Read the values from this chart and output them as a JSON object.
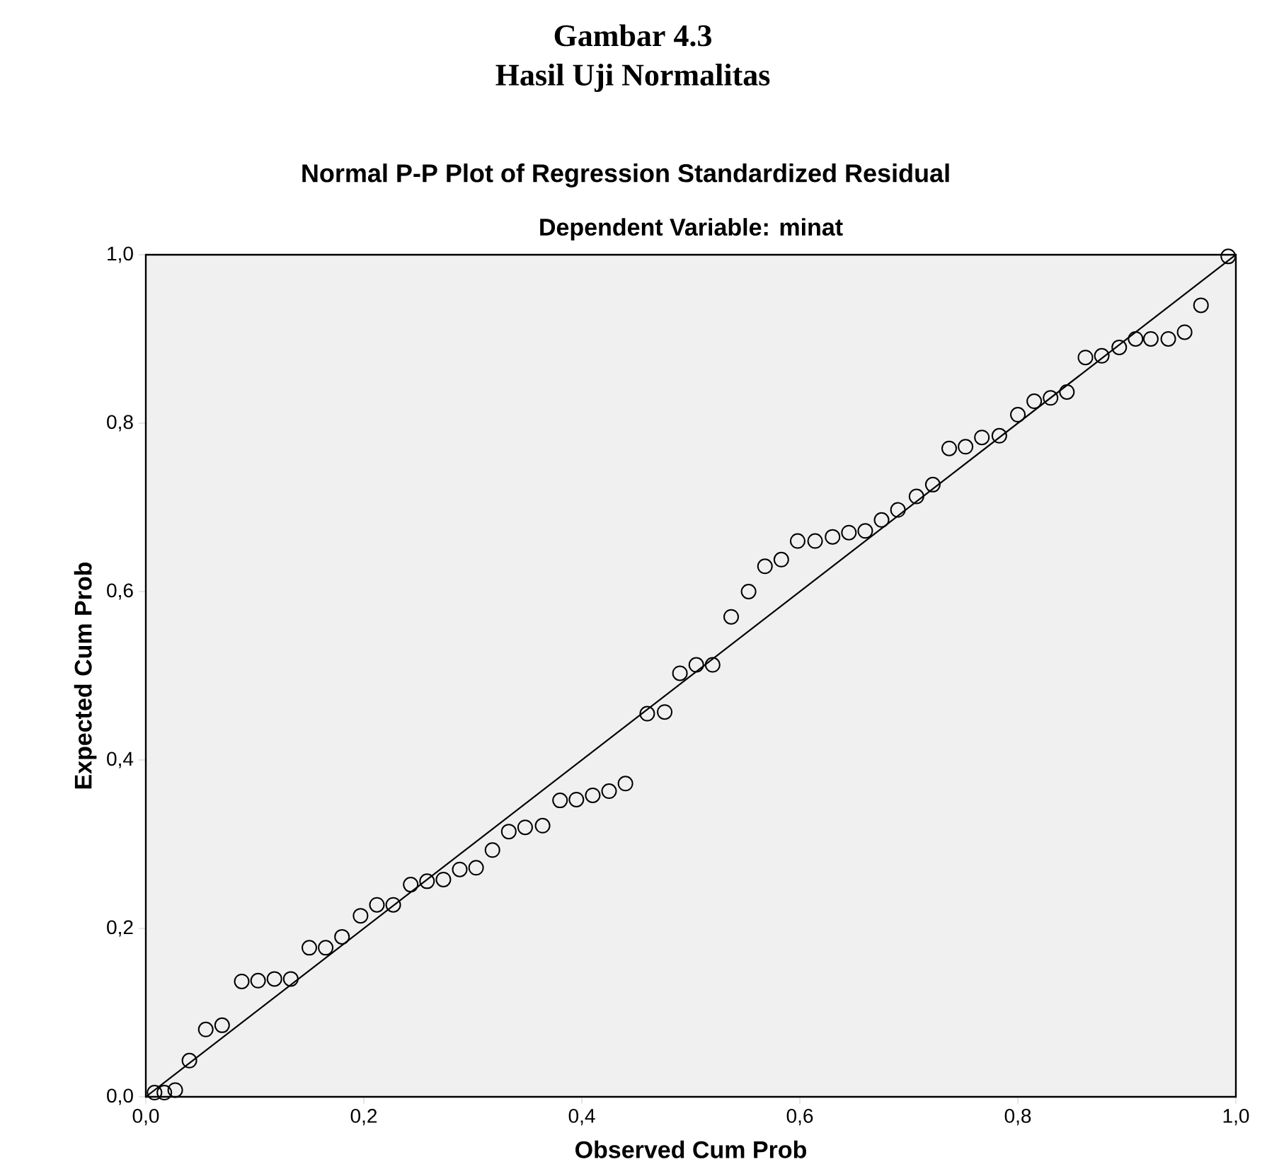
{
  "chart_data": {
    "type": "scatter",
    "title": "Normal P-P Plot of Regression Standardized Residual",
    "subtitle": "Dependent Variable: minat",
    "xlabel": "Observed Cum Prob",
    "ylabel": "Expected Cum Prob",
    "annotations": [
      "Gambar 4.3",
      "Hasil Uji Normalitas"
    ],
    "xlim": [
      0,
      1
    ],
    "ylim": [
      0,
      1
    ],
    "xticks": [
      {
        "value": 0,
        "label": "0,0"
      },
      {
        "value": 0.2,
        "label": "0,2"
      },
      {
        "value": 0.4,
        "label": "0,4"
      },
      {
        "value": 0.6,
        "label": "0,6"
      },
      {
        "value": 0.8,
        "label": "0,8"
      },
      {
        "value": 1,
        "label": "1,0"
      }
    ],
    "yticks": [
      {
        "value": 0,
        "label": "0,0"
      },
      {
        "value": 0.2,
        "label": "0,2"
      },
      {
        "value": 0.4,
        "label": "0,4"
      },
      {
        "value": 0.6,
        "label": "0,6"
      },
      {
        "value": 0.8,
        "label": "0,8"
      },
      {
        "value": 1,
        "label": "1,0"
      }
    ],
    "grid": false,
    "series": [
      {
        "marker": "circle",
        "color": "#000000",
        "x": [
          0.008,
          0.017,
          0.027,
          0.04,
          0.055,
          0.07,
          0.088,
          0.103,
          0.118,
          0.133,
          0.15,
          0.165,
          0.18,
          0.197,
          0.212,
          0.227,
          0.243,
          0.258,
          0.273,
          0.288,
          0.303,
          0.318,
          0.333,
          0.348,
          0.364,
          0.38,
          0.395,
          0.41,
          0.425,
          0.44,
          0.46,
          0.476,
          0.49,
          0.505,
          0.52,
          0.537,
          0.553,
          0.568,
          0.583,
          0.598,
          0.614,
          0.63,
          0.645,
          0.66,
          0.675,
          0.69,
          0.707,
          0.722,
          0.737,
          0.752,
          0.767,
          0.783,
          0.8,
          0.815,
          0.83,
          0.845,
          0.862,
          0.877,
          0.893,
          0.908,
          0.922,
          0.938,
          0.953,
          0.968,
          0.993
        ],
        "values": [
          0.005,
          0.005,
          0.008,
          0.043,
          0.08,
          0.085,
          0.137,
          0.138,
          0.14,
          0.14,
          0.177,
          0.177,
          0.19,
          0.215,
          0.228,
          0.228,
          0.252,
          0.256,
          0.258,
          0.27,
          0.272,
          0.293,
          0.315,
          0.32,
          0.322,
          0.352,
          0.353,
          0.358,
          0.363,
          0.372,
          0.455,
          0.457,
          0.503,
          0.513,
          0.513,
          0.57,
          0.6,
          0.63,
          0.638,
          0.66,
          0.66,
          0.665,
          0.67,
          0.672,
          0.685,
          0.697,
          0.713,
          0.727,
          0.77,
          0.772,
          0.783,
          0.785,
          0.81,
          0.826,
          0.83,
          0.837,
          0.878,
          0.88,
          0.89,
          0.9,
          0.9,
          0.9,
          0.908,
          0.94,
          0.998
        ]
      },
      {
        "type": "line",
        "marker": "none",
        "line_style": "solid",
        "color": "#000000",
        "x": [
          0,
          1
        ],
        "values": [
          0,
          1
        ]
      }
    ]
  }
}
